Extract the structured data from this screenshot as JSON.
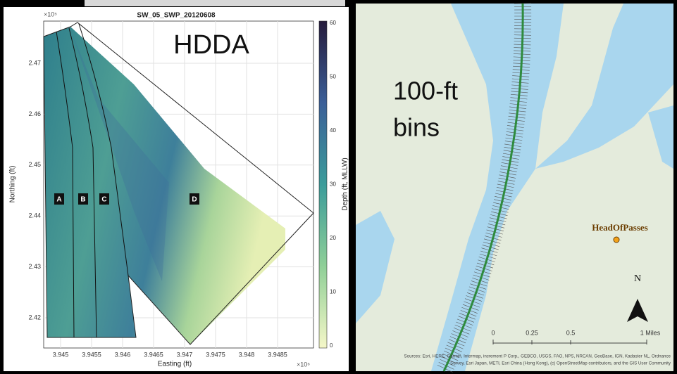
{
  "left_panel": {
    "title": "SW_05_SWP_20120608",
    "y_exponent": "×10⁵",
    "x_exponent": "×10⁶",
    "y_label": "Northing (ft)",
    "x_label": "Easting (ft)",
    "colorbar_label": "Depth (ft, MLLW)",
    "overlay": "HDDA",
    "yticks": [
      "2.47",
      "2.46",
      "2.45",
      "2.44",
      "2.43",
      "2.42"
    ],
    "xticks": [
      "3.945",
      "3.9455",
      "3.946",
      "3.9465",
      "3.947",
      "3.9475",
      "3.948",
      "3.9485"
    ],
    "colorbar_ticks": [
      "60",
      "50",
      "40",
      "30",
      "20",
      "10",
      "0"
    ],
    "zones": [
      "A",
      "B",
      "C",
      "D"
    ]
  },
  "map_panel": {
    "overlay_line1": "100-ft",
    "overlay_line2": "bins",
    "place": "HeadOfPasses",
    "north": "N",
    "scale": [
      "0",
      "0.25",
      "0.5",
      "1 Miles"
    ],
    "attribution_line1": "Sources: Esri, HERE, Garmin, Intermap, increment P Corp., GEBCO, USGS, FAO, NPS, NRCAN, GeoBase, IGN, Kadaster NL, Ordnance",
    "attribution_line2": "Survey, Esri Japan, METI, Esri China (Hong Kong), (c) OpenStreetMap contributors, and the GIS User Community"
  }
}
